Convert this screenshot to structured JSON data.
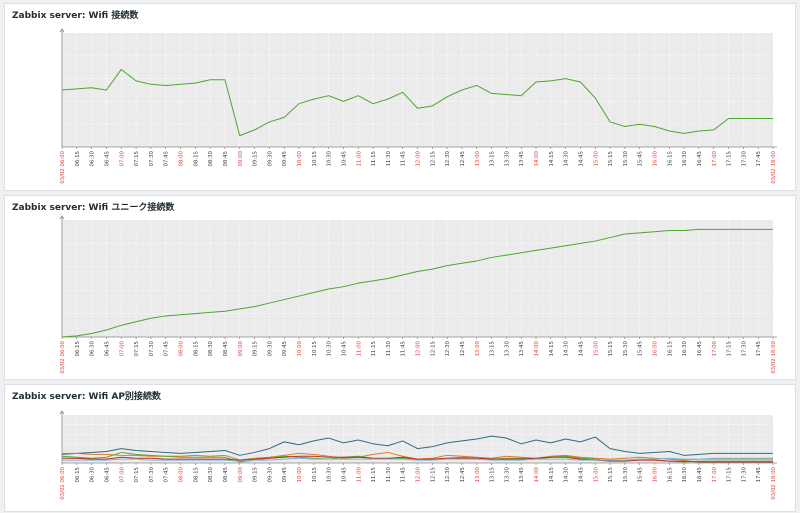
{
  "panels": [
    {
      "title": "Zabbix server: Wifi 接続数"
    },
    {
      "title": "Zabbix server: Wifi ユニーク接続数"
    },
    {
      "title": "Zabbix server: Wifi AP別接続数"
    }
  ],
  "x_labels": [
    "03/02 06:00",
    "06:15",
    "06:30",
    "06:45",
    "07:00",
    "07:15",
    "07:30",
    "07:45",
    "08:00",
    "08:15",
    "08:30",
    "08:45",
    "09:00",
    "09:15",
    "09:30",
    "09:45",
    "10:00",
    "10:15",
    "10:30",
    "10:45",
    "11:00",
    "11:15",
    "11:30",
    "11:45",
    "12:00",
    "12:15",
    "12:30",
    "12:45",
    "13:00",
    "13:15",
    "13:30",
    "13:45",
    "14:00",
    "14:15",
    "14:30",
    "14:45",
    "15:00",
    "15:15",
    "15:30",
    "15:45",
    "16:00",
    "16:15",
    "16:30",
    "16:45",
    "17:00",
    "17:15",
    "17:30",
    "17:45",
    "03/02 18:00"
  ],
  "colors": {
    "highlight_tick": "#e0443a",
    "plot_bg": "#ebebeb"
  },
  "chart_data": [
    {
      "type": "line",
      "title": "Zabbix server: Wifi 接続数",
      "x_time": [
        "06:00",
        "06:15",
        "06:30",
        "06:45",
        "07:00",
        "07:15",
        "07:30",
        "07:45",
        "08:00",
        "08:15",
        "08:30",
        "08:45",
        "09:00",
        "09:15",
        "09:30",
        "09:45",
        "10:00",
        "10:15",
        "10:30",
        "10:45",
        "11:00",
        "11:15",
        "11:30",
        "11:45",
        "12:00",
        "12:15",
        "12:30",
        "12:45",
        "13:00",
        "13:15",
        "13:30",
        "13:45",
        "14:00",
        "14:15",
        "14:30",
        "14:45",
        "15:00",
        "15:15",
        "15:30",
        "15:45",
        "16:00",
        "16:15",
        "16:30",
        "16:45",
        "17:00",
        "17:15",
        "17:30",
        "17:45",
        "18:00"
      ],
      "ylim": [
        0,
        100
      ],
      "grid": true,
      "series": [
        {
          "color": "#4ea52f",
          "values": [
            50,
            51,
            52,
            50,
            68,
            58,
            55,
            54,
            55,
            56,
            59,
            59,
            10,
            15,
            22,
            26,
            38,
            42,
            45,
            40,
            45,
            38,
            42,
            48,
            34,
            36,
            44,
            50,
            54,
            47,
            46,
            45,
            57,
            58,
            60,
            57,
            43,
            22,
            18,
            20,
            18,
            14,
            12,
            14,
            15,
            25,
            25,
            25,
            25
          ]
        }
      ]
    },
    {
      "type": "line",
      "title": "Zabbix server: Wifi ユニーク接続数",
      "x_time": [
        "06:00",
        "06:15",
        "06:30",
        "06:45",
        "07:00",
        "07:15",
        "07:30",
        "07:45",
        "08:00",
        "08:15",
        "08:30",
        "08:45",
        "09:00",
        "09:15",
        "09:30",
        "09:45",
        "10:00",
        "10:15",
        "10:30",
        "10:45",
        "11:00",
        "11:15",
        "11:30",
        "11:45",
        "12:00",
        "12:15",
        "12:30",
        "12:45",
        "13:00",
        "13:15",
        "13:30",
        "13:45",
        "14:00",
        "14:15",
        "14:30",
        "14:45",
        "15:00",
        "15:15",
        "15:30",
        "15:45",
        "16:00",
        "16:15",
        "16:30",
        "16:45",
        "17:00",
        "17:15",
        "17:30",
        "17:45",
        "18:00"
      ],
      "ylim": [
        0,
        100
      ],
      "grid": true,
      "series": [
        {
          "color": "#4ea52f",
          "values": [
            0,
            1,
            3,
            6,
            10,
            13,
            16,
            18,
            19,
            20,
            21,
            22,
            24,
            26,
            29,
            32,
            35,
            38,
            41,
            43,
            46,
            48,
            50,
            53,
            56,
            58,
            61,
            63,
            65,
            68,
            70,
            72,
            74,
            76,
            78,
            80,
            82,
            85,
            88,
            89,
            90,
            91,
            91,
            92,
            92,
            92,
            92,
            92,
            92
          ]
        }
      ]
    },
    {
      "type": "line",
      "title": "Zabbix server: Wifi AP別接続数",
      "x_time": [
        "06:00",
        "06:15",
        "06:30",
        "06:45",
        "07:00",
        "07:15",
        "07:30",
        "07:45",
        "08:00",
        "08:15",
        "08:30",
        "08:45",
        "09:00",
        "09:15",
        "09:30",
        "09:45",
        "10:00",
        "10:15",
        "10:30",
        "10:45",
        "11:00",
        "11:15",
        "11:30",
        "11:45",
        "12:00",
        "12:15",
        "12:30",
        "12:45",
        "13:00",
        "13:15",
        "13:30",
        "13:45",
        "14:00",
        "14:15",
        "14:30",
        "14:45",
        "15:00",
        "15:15",
        "15:30",
        "15:45",
        "16:00",
        "16:15",
        "16:30",
        "16:45",
        "17:00",
        "17:15",
        "17:30",
        "17:45",
        "18:00"
      ],
      "ylim": [
        0,
        100
      ],
      "grid": true,
      "series": [
        {
          "color": "#2f6b82",
          "values": [
            18,
            20,
            22,
            24,
            30,
            26,
            24,
            22,
            20,
            22,
            24,
            26,
            16,
            22,
            30,
            44,
            38,
            46,
            52,
            42,
            48,
            40,
            36,
            46,
            30,
            34,
            42,
            46,
            50,
            56,
            52,
            40,
            48,
            42,
            50,
            44,
            54,
            30,
            24,
            20,
            22,
            24,
            16,
            18,
            20,
            20,
            20,
            20,
            20
          ]
        },
        {
          "color": "#e07b20",
          "values": [
            20,
            20,
            18,
            18,
            16,
            16,
            14,
            14,
            14,
            16,
            14,
            16,
            6,
            10,
            12,
            16,
            20,
            18,
            14,
            10,
            12,
            18,
            22,
            14,
            8,
            10,
            16,
            14,
            12,
            10,
            14,
            12,
            10,
            14,
            16,
            12,
            10,
            8,
            10,
            12,
            10,
            8,
            6,
            8,
            8,
            8,
            8,
            8,
            8
          ]
        },
        {
          "color": "#5fa82e",
          "values": [
            14,
            12,
            10,
            12,
            22,
            18,
            16,
            14,
            12,
            12,
            12,
            12,
            2,
            6,
            10,
            14,
            12,
            10,
            8,
            12,
            14,
            10,
            8,
            10,
            6,
            8,
            10,
            12,
            10,
            8,
            10,
            10,
            8,
            12,
            14,
            10,
            8,
            4,
            6,
            8,
            6,
            4,
            2,
            4,
            4,
            4,
            4,
            4,
            4
          ]
        },
        {
          "color": "#b72f2f",
          "values": [
            10,
            10,
            8,
            8,
            12,
            10,
            10,
            8,
            8,
            8,
            8,
            8,
            6,
            8,
            10,
            12,
            14,
            14,
            12,
            12,
            12,
            10,
            10,
            12,
            8,
            8,
            10,
            10,
            10,
            8,
            8,
            8,
            10,
            12,
            12,
            8,
            6,
            4,
            4,
            6,
            6,
            4,
            4,
            2,
            2,
            2,
            2,
            2,
            2
          ]
        },
        {
          "color": "#7bb6d8",
          "values": [
            6,
            6,
            6,
            6,
            8,
            8,
            6,
            6,
            6,
            6,
            6,
            6,
            4,
            6,
            6,
            8,
            10,
            8,
            8,
            8,
            8,
            8,
            8,
            8,
            6,
            6,
            8,
            8,
            8,
            6,
            6,
            6,
            8,
            8,
            8,
            6,
            6,
            6,
            6,
            8,
            8,
            10,
            8,
            8,
            10,
            10,
            10,
            10,
            10
          ]
        }
      ]
    }
  ]
}
